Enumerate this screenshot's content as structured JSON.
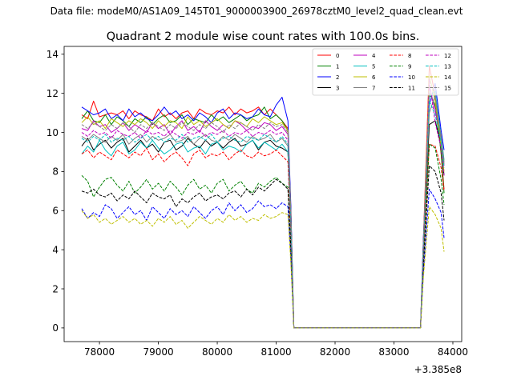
{
  "figure": {
    "suptitle": "Data file: modeM0/AS1A09_145T01_9000003900_26978cztM0_level2_quad_clean.evt"
  },
  "chart_data": {
    "type": "line",
    "title": "Quadrant 2 module wise count rates with 100.0s bins.",
    "xlabel": "",
    "ylabel": "",
    "x_offset_label": "+3.385e8",
    "xlim": [
      77400,
      84150
    ],
    "ylim": [
      -0.7,
      14.4
    ],
    "xticks": [
      78000,
      79000,
      80000,
      81000,
      82000,
      83000,
      84000
    ],
    "yticks": [
      0,
      2,
      4,
      6,
      8,
      10,
      12,
      14
    ],
    "grid": false,
    "legend": {
      "placement": "top-right",
      "columns": 4
    },
    "x": [
      77700,
      77800,
      77900,
      78000,
      78100,
      78200,
      78300,
      78400,
      78500,
      78600,
      78700,
      78800,
      78900,
      79000,
      79100,
      79200,
      79300,
      79400,
      79500,
      79600,
      79700,
      79800,
      79900,
      80000,
      80100,
      80200,
      80300,
      80400,
      80500,
      80600,
      80700,
      80800,
      80900,
      81000,
      81100,
      81200,
      81250,
      81300,
      81400,
      81500,
      81600,
      81700,
      81800,
      81900,
      82000,
      82100,
      82200,
      82300,
      82400,
      82500,
      82600,
      82700,
      82800,
      82900,
      83000,
      83100,
      83200,
      83300,
      83400,
      83450,
      83500,
      83600,
      83700,
      83800,
      83850
    ],
    "series": [
      {
        "name": "0",
        "color": "#ff0000",
        "dash": "solid",
        "values": [
          10.9,
          10.7,
          11.6,
          10.8,
          10.9,
          11.0,
          10.9,
          11.1,
          10.7,
          11.1,
          10.9,
          10.8,
          10.6,
          11.2,
          10.8,
          11.0,
          10.7,
          11.0,
          11.1,
          10.7,
          11.2,
          11.0,
          10.9,
          11.1,
          11.0,
          11.3,
          10.9,
          11.2,
          11.0,
          11.1,
          11.3,
          10.9,
          11.2,
          10.9,
          10.6,
          10.2,
          6.0,
          0.0,
          0,
          0,
          0,
          0,
          0,
          0,
          0,
          0,
          0,
          0,
          0,
          0,
          0,
          0,
          0,
          0,
          0,
          0,
          0,
          0,
          0,
          0,
          4.5,
          13.4,
          11.9,
          8.9,
          7.1
        ]
      },
      {
        "name": "1",
        "color": "#008000",
        "dash": "solid",
        "values": [
          10.7,
          11.1,
          10.6,
          10.5,
          10.9,
          10.4,
          10.8,
          10.6,
          10.3,
          10.7,
          10.5,
          10.8,
          10.4,
          10.7,
          10.9,
          10.5,
          10.6,
          10.9,
          10.4,
          10.7,
          10.6,
          10.5,
          10.9,
          10.6,
          10.8,
          10.5,
          10.7,
          10.9,
          10.6,
          10.8,
          10.9,
          11.3,
          10.7,
          10.9,
          10.6,
          10.1,
          5.9,
          0.0,
          0,
          0,
          0,
          0,
          0,
          0,
          0,
          0,
          0,
          0,
          0,
          0,
          0,
          0,
          0,
          0,
          0,
          0,
          0,
          0,
          0,
          0,
          4.3,
          12.0,
          11.4,
          9.0,
          6.9
        ]
      },
      {
        "name": "2",
        "color": "#0000ff",
        "dash": "solid",
        "values": [
          11.3,
          11.1,
          10.9,
          11.0,
          11.2,
          10.7,
          10.9,
          10.6,
          11.2,
          10.8,
          11.0,
          10.7,
          10.6,
          10.9,
          11.3,
          10.9,
          11.1,
          10.7,
          10.9,
          10.6,
          11.0,
          10.8,
          10.5,
          11.0,
          11.2,
          10.7,
          11.0,
          10.9,
          10.7,
          10.8,
          11.2,
          10.9,
          10.8,
          11.4,
          11.8,
          10.6,
          6.2,
          0.0,
          0,
          0,
          0,
          0,
          0,
          0,
          0,
          0,
          0,
          0,
          0,
          0,
          0,
          0,
          0,
          0,
          0,
          0,
          0,
          0,
          0,
          0,
          4.6,
          11.4,
          12.5,
          10.1,
          9.1
        ]
      },
      {
        "name": "3",
        "color": "#000000",
        "dash": "solid",
        "values": [
          9.3,
          9.7,
          9.1,
          9.4,
          9.6,
          9.2,
          9.5,
          9.7,
          9.0,
          9.3,
          9.6,
          9.2,
          9.4,
          9.0,
          9.5,
          9.6,
          9.1,
          9.3,
          9.7,
          9.4,
          9.2,
          9.6,
          9.3,
          9.5,
          9.2,
          9.5,
          9.7,
          9.3,
          9.4,
          9.6,
          9.1,
          9.5,
          9.6,
          9.3,
          9.2,
          9.0,
          5.2,
          0.0,
          0,
          0,
          0,
          0,
          0,
          0,
          0,
          0,
          0,
          0,
          0,
          0,
          0,
          0,
          0,
          0,
          0,
          0,
          0,
          0,
          0,
          0,
          4.0,
          10.4,
          10.6,
          9.4,
          7.8
        ]
      },
      {
        "name": "4",
        "color": "#bf00bf",
        "dash": "solid",
        "values": [
          10.2,
          10.1,
          10.6,
          10.3,
          10.4,
          10.0,
          10.2,
          10.5,
          10.1,
          10.4,
          10.2,
          10.0,
          10.5,
          10.2,
          10.4,
          9.9,
          10.3,
          10.6,
          10.1,
          10.3,
          10.0,
          10.6,
          10.3,
          10.1,
          10.4,
          10.2,
          10.6,
          10.4,
          10.1,
          10.3,
          10.2,
          10.5,
          10.4,
          10.1,
          10.3,
          9.9,
          5.6,
          0.0,
          0,
          0,
          0,
          0,
          0,
          0,
          0,
          0,
          0,
          0,
          0,
          0,
          0,
          0,
          0,
          0,
          0,
          0,
          0,
          0,
          0,
          0,
          4.4,
          12.4,
          11.1,
          9.7,
          8.3
        ]
      },
      {
        "name": "5",
        "color": "#00bfbf",
        "dash": "solid",
        "values": [
          8.9,
          9.3,
          9.0,
          9.6,
          9.1,
          8.8,
          9.3,
          9.5,
          8.9,
          9.1,
          9.5,
          9.2,
          9.6,
          9.2,
          8.9,
          9.1,
          9.4,
          9.5,
          9.0,
          9.2,
          9.3,
          8.9,
          9.4,
          9.5,
          9.1,
          9.3,
          9.2,
          9.0,
          9.4,
          9.6,
          9.2,
          9.5,
          9.3,
          9.1,
          9.4,
          9.0,
          5.1,
          0.0,
          0,
          0,
          0,
          0,
          0,
          0,
          0,
          0,
          0,
          0,
          0,
          0,
          0,
          0,
          0,
          0,
          0,
          0,
          0,
          0,
          0,
          0,
          4.1,
          11.8,
          12.1,
          9.8,
          8.6
        ]
      },
      {
        "name": "6",
        "color": "#bfbf00",
        "dash": "solid",
        "values": [
          10.5,
          10.8,
          10.4,
          10.6,
          10.2,
          10.7,
          10.5,
          10.3,
          10.6,
          10.4,
          10.7,
          10.5,
          10.2,
          10.6,
          10.3,
          10.6,
          10.5,
          10.2,
          10.8,
          10.4,
          10.6,
          10.3,
          10.5,
          10.7,
          10.4,
          10.2,
          10.6,
          10.5,
          10.3,
          10.7,
          10.5,
          10.8,
          10.6,
          10.4,
          10.5,
          10.1,
          5.8,
          0.0,
          0,
          0,
          0,
          0,
          0,
          0,
          0,
          0,
          0,
          0,
          0,
          0,
          0,
          0,
          0,
          0,
          0,
          0,
          0,
          0,
          0,
          0,
          4.3,
          12.9,
          11.6,
          9.3,
          8.0
        ]
      },
      {
        "name": "7",
        "color": "#808080",
        "dash": "solid",
        "values": [
          9.8,
          9.6,
          9.9,
          9.7,
          9.5,
          9.8,
          9.6,
          9.9,
          9.4,
          9.7,
          9.9,
          9.5,
          9.8,
          9.6,
          9.7,
          9.9,
          9.5,
          9.6,
          9.8,
          9.4,
          9.7,
          9.9,
          9.6,
          9.5,
          9.8,
          9.6,
          9.9,
          9.7,
          9.5,
          9.8,
          9.6,
          9.7,
          9.9,
          9.5,
          9.7,
          9.3,
          5.4,
          0.0,
          0,
          0,
          0,
          0,
          0,
          0,
          0,
          0,
          0,
          0,
          0,
          0,
          0,
          0,
          0,
          0,
          0,
          0,
          0,
          0,
          0,
          0,
          4.1,
          11.0,
          11.9,
          9.6,
          8.4
        ]
      },
      {
        "name": "8",
        "color": "#ff0000",
        "dash": "dashed",
        "values": [
          8.9,
          9.1,
          8.7,
          9.0,
          8.8,
          8.6,
          9.1,
          8.9,
          8.7,
          9.0,
          8.8,
          9.2,
          8.6,
          8.9,
          8.5,
          8.8,
          9.0,
          8.7,
          8.3,
          8.9,
          9.1,
          8.7,
          8.9,
          8.8,
          9.0,
          8.6,
          8.9,
          9.1,
          8.8,
          8.7,
          9.0,
          8.8,
          8.9,
          9.1,
          8.8,
          8.5,
          4.8,
          0.0,
          0,
          0,
          0,
          0,
          0,
          0,
          0,
          0,
          0,
          0,
          0,
          0,
          0,
          0,
          0,
          0,
          0,
          0,
          0,
          0,
          0,
          0,
          3.8,
          9.4,
          9.3,
          8.2,
          7.0
        ]
      },
      {
        "name": "9",
        "color": "#008000",
        "dash": "dashed",
        "values": [
          7.8,
          7.5,
          6.7,
          7.2,
          7.6,
          7.7,
          7.3,
          7.0,
          7.5,
          6.9,
          7.2,
          7.6,
          7.1,
          7.4,
          7.0,
          7.5,
          7.2,
          6.8,
          7.3,
          7.6,
          7.1,
          7.3,
          6.9,
          7.4,
          7.6,
          7.0,
          7.3,
          7.5,
          7.1,
          6.9,
          7.4,
          7.2,
          7.5,
          7.7,
          7.4,
          7.2,
          4.1,
          0.0,
          0,
          0,
          0,
          0,
          0,
          0,
          0,
          0,
          0,
          0,
          0,
          0,
          0,
          0,
          0,
          0,
          0,
          0,
          0,
          0,
          0,
          0,
          3.3,
          9.4,
          9.2,
          7.6,
          6.3
        ]
      },
      {
        "name": "10",
        "color": "#0000ff",
        "dash": "dashed",
        "values": [
          6.1,
          5.6,
          5.9,
          5.7,
          6.3,
          6.1,
          5.6,
          5.9,
          6.2,
          5.8,
          6.0,
          5.5,
          6.2,
          5.9,
          5.6,
          6.1,
          5.8,
          6.0,
          5.7,
          6.2,
          5.9,
          5.6,
          6.0,
          6.2,
          5.8,
          6.4,
          6.0,
          6.3,
          5.9,
          6.1,
          6.5,
          6.2,
          6.3,
          6.1,
          6.4,
          6.2,
          3.5,
          0.0,
          0,
          0,
          0,
          0,
          0,
          0,
          0,
          0,
          0,
          0,
          0,
          0,
          0,
          0,
          0,
          0,
          0,
          0,
          0,
          0,
          0,
          0,
          2.8,
          7.1,
          6.6,
          5.9,
          4.6
        ]
      },
      {
        "name": "11",
        "color": "#000000",
        "dash": "dashed",
        "values": [
          7.0,
          6.9,
          7.1,
          6.8,
          6.7,
          6.9,
          6.5,
          6.8,
          6.6,
          7.0,
          6.7,
          6.4,
          6.9,
          6.7,
          6.6,
          6.8,
          6.2,
          6.6,
          6.4,
          6.7,
          6.9,
          6.5,
          6.7,
          6.8,
          6.6,
          6.9,
          7.0,
          6.7,
          7.1,
          6.8,
          7.2,
          7.0,
          7.3,
          7.6,
          7.4,
          7.1,
          4.0,
          0.0,
          0,
          0,
          0,
          0,
          0,
          0,
          0,
          0,
          0,
          0,
          0,
          0,
          0,
          0,
          0,
          0,
          0,
          0,
          0,
          0,
          0,
          0,
          3.2,
          8.3,
          8.0,
          6.9,
          5.5
        ]
      },
      {
        "name": "12",
        "color": "#bf00bf",
        "dash": "dashed",
        "values": [
          10.0,
          9.8,
          10.1,
          9.9,
          10.0,
          9.7,
          10.1,
          9.9,
          9.8,
          10.0,
          9.7,
          10.1,
          9.9,
          10.0,
          9.8,
          10.1,
          9.9,
          9.7,
          10.0,
          9.9,
          10.1,
          9.8,
          10.0,
          9.9,
          10.1,
          9.8,
          10.0,
          9.9,
          10.1,
          9.8,
          10.0,
          9.9,
          10.1,
          9.9,
          10.0,
          9.6,
          5.4,
          0.0,
          0,
          0,
          0,
          0,
          0,
          0,
          0,
          0,
          0,
          0,
          0,
          0,
          0,
          0,
          0,
          0,
          0,
          0,
          0,
          0,
          0,
          0,
          4.0,
          12.7,
          10.5,
          9.2,
          7.8
        ]
      },
      {
        "name": "13",
        "color": "#00bfbf",
        "dash": "dashed",
        "values": [
          9.7,
          9.5,
          9.8,
          9.6,
          9.9,
          9.5,
          9.7,
          9.6,
          9.8,
          9.5,
          9.7,
          9.9,
          9.6,
          9.8,
          9.5,
          9.7,
          9.6,
          9.9,
          9.5,
          9.7,
          9.8,
          9.6,
          9.9,
          9.5,
          9.7,
          9.8,
          9.6,
          9.5,
          9.8,
          9.7,
          9.6,
          9.9,
          9.7,
          9.5,
          9.8,
          9.4,
          5.3,
          0.0,
          0,
          0,
          0,
          0,
          0,
          0,
          0,
          0,
          0,
          0,
          0,
          0,
          0,
          0,
          0,
          0,
          0,
          0,
          0,
          0,
          0,
          0,
          4.2,
          11.6,
          10.9,
          9.5,
          8.2
        ]
      },
      {
        "name": "14",
        "color": "#bfbf00",
        "dash": "dashed",
        "values": [
          6.0,
          5.6,
          5.8,
          5.4,
          5.6,
          5.3,
          5.5,
          5.7,
          5.4,
          5.6,
          5.3,
          5.5,
          5.2,
          5.6,
          5.4,
          5.7,
          5.3,
          5.5,
          5.1,
          5.4,
          5.7,
          5.5,
          5.3,
          5.6,
          5.4,
          5.8,
          5.5,
          5.7,
          5.4,
          5.6,
          5.5,
          5.8,
          5.6,
          5.7,
          5.9,
          5.8,
          3.3,
          0.0,
          0,
          0,
          0,
          0,
          0,
          0,
          0,
          0,
          0,
          0,
          0,
          0,
          0,
          0,
          0,
          0,
          0,
          0,
          0,
          0,
          0,
          0,
          2.6,
          6.2,
          5.8,
          5.1,
          3.9
        ]
      },
      {
        "name": "15",
        "color": "#808080",
        "dash": "dashed",
        "values": [
          10.4,
          10.2,
          10.5,
          10.3,
          10.1,
          10.4,
          10.2,
          10.5,
          10.3,
          10.0,
          10.4,
          10.2,
          10.5,
          10.3,
          10.1,
          10.4,
          10.2,
          10.5,
          10.3,
          10.1,
          10.4,
          10.2,
          10.5,
          10.3,
          10.0,
          10.4,
          10.2,
          10.5,
          10.3,
          10.1,
          10.4,
          10.2,
          10.5,
          10.3,
          10.4,
          10.0,
          5.7,
          0.0,
          0,
          0,
          0,
          0,
          0,
          0,
          0,
          0,
          0,
          0,
          0,
          0,
          0,
          0,
          0,
          0,
          0,
          0,
          0,
          0,
          0,
          0,
          4.3,
          12.1,
          11.3,
          9.9,
          8.5
        ]
      }
    ]
  }
}
